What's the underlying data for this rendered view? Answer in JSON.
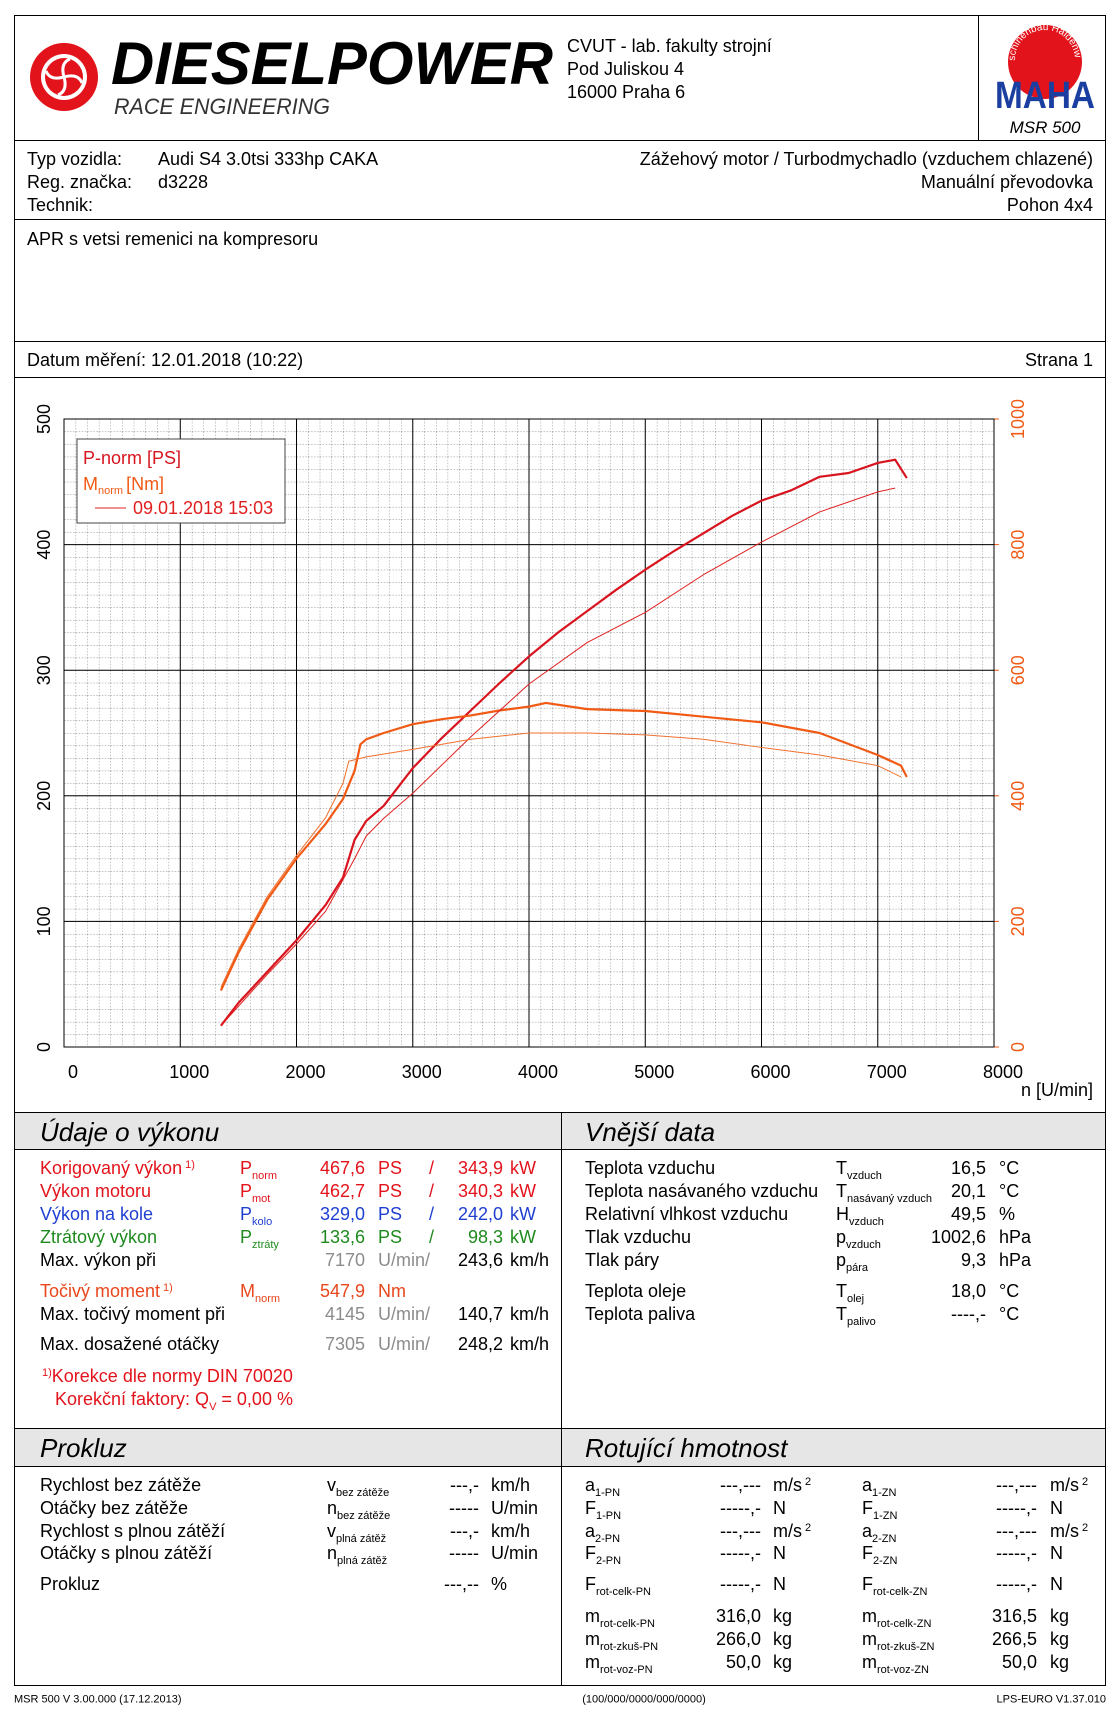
{
  "header": {
    "logo": {
      "title": "DIESELPOWER",
      "subtitle": "RACE ENGINEERING"
    },
    "address": [
      "CVUT - lab. fakulty strojní",
      "Pod Juliskou 4",
      "16000 Praha 6"
    ],
    "maha": {
      "ring": "Maschinenbau Haldenwang",
      "brand": "MAHA",
      "model": "MSR 500"
    }
  },
  "vehicle": {
    "rows": [
      {
        "label": "Typ vozidla:",
        "value": "Audi S4 3.0tsi 333hp CAKA"
      },
      {
        "label": "Reg. značka:",
        "value": "d3228"
      },
      {
        "label": "Technik:"
      }
    ],
    "specs": [
      "Zážehový motor / Turbodmychadlo (vzduchem chlazené)",
      "Manuální převodovka",
      "Pohon 4x4"
    ]
  },
  "note": "APR s vetsi remenici na kompresoru",
  "date": "Datum měření: 12.01.2018 (10:22)",
  "page": "Strana 1",
  "chart_data": {
    "type": "line",
    "x_label": "n [U/min]",
    "xlim": [
      0,
      8000
    ],
    "xticks": [
      0,
      1000,
      2000,
      3000,
      4000,
      5000,
      6000,
      7000,
      8000
    ],
    "ylim": [
      0,
      500
    ],
    "yticks": [
      0,
      100,
      200,
      300,
      400,
      500
    ],
    "y2lim": [
      0,
      1000
    ],
    "y2ticks": [
      0,
      200,
      400,
      600,
      800,
      1000
    ],
    "y2_color": "#f05a14",
    "grid": true,
    "series": [
      {
        "name": "P-norm [PS]",
        "color": "#d8141e",
        "width": 2.2,
        "x": [
          1350,
          1500,
          1750,
          2000,
          2250,
          2400,
          2500,
          2600,
          2750,
          3000,
          3250,
          3500,
          3750,
          4000,
          4250,
          4500,
          4750,
          5000,
          5250,
          5500,
          5750,
          6000,
          6250,
          6500,
          6750,
          7000,
          7150,
          7250
        ],
        "values": [
          17,
          35,
          60,
          85,
          113,
          135,
          165,
          180,
          192,
          222,
          246,
          268,
          290,
          311,
          330,
          347,
          364,
          380,
          395,
          409,
          423,
          435,
          443,
          454,
          457,
          465,
          467.6,
          453
        ]
      },
      {
        "name": "M",
        "name_sub": "norm",
        "name_suffix": "[Nm]",
        "color": "#f05a14",
        "width": 2.2,
        "axis": "y2",
        "x": [
          1350,
          1500,
          1750,
          2000,
          2250,
          2400,
          2500,
          2550,
          2600,
          2750,
          3000,
          3250,
          3500,
          3750,
          4000,
          4145,
          4500,
          5000,
          5500,
          6000,
          6500,
          7000,
          7200,
          7250
        ],
        "values": [
          90,
          150,
          235,
          300,
          355,
          395,
          440,
          482,
          490,
          500,
          514,
          522,
          528,
          536,
          542,
          547.9,
          538,
          535,
          526,
          517,
          500,
          465,
          448,
          430
        ]
      },
      {
        "name": "09.01.2018 15:03",
        "color": "#e02020",
        "width": 1,
        "x": [
          1350,
          1750,
          2000,
          2250,
          2500,
          2600,
          2750,
          3000,
          3500,
          4000,
          4500,
          5000,
          5500,
          6000,
          6500,
          7000,
          7150
        ],
        "values": [
          17,
          58,
          82,
          108,
          150,
          168,
          182,
          202,
          247,
          289,
          322,
          346,
          376,
          402,
          426,
          442,
          445
        ]
      },
      {
        "color": "#f07030",
        "width": 1,
        "axis": "y2",
        "x": [
          1350,
          1500,
          1750,
          2000,
          2250,
          2400,
          2450,
          2600,
          3000,
          3500,
          4000,
          4500,
          5000,
          5500,
          6000,
          6500,
          7000,
          7200
        ],
        "values": [
          95,
          155,
          240,
          305,
          365,
          420,
          455,
          462,
          474,
          490,
          500,
          500,
          497,
          490,
          477,
          465,
          448,
          430
        ]
      }
    ]
  },
  "performance": {
    "title": "Údaje o výkonu",
    "rows": [
      {
        "label": "Korigovaný výkon",
        "note": "1)",
        "symbol": "P",
        "sub": "norm",
        "value": "467,6",
        "unit": "PS",
        "sep": "/",
        "value2": "343,9",
        "unit2": "kW",
        "color": "#e3131b"
      },
      {
        "label": "Výkon motoru",
        "symbol": "P",
        "sub": "mot",
        "value": "462,7",
        "unit": "PS",
        "sep": "/",
        "value2": "340,3",
        "unit2": "kW",
        "color": "#e3131b"
      },
      {
        "label": "Výkon na kole",
        "symbol": "P",
        "sub": "kolo",
        "value": "329,0",
        "unit": "PS",
        "sep": "/",
        "value2": "242,0",
        "unit2": "kW",
        "color": "#1f3fd0"
      },
      {
        "label": "Ztrátový výkon",
        "symbol": "P",
        "sub": "ztráty",
        "value": "133,6",
        "unit": "PS",
        "sep": "/",
        "value2": "98,3",
        "unit2": "kW",
        "color": "#1e8a1e"
      },
      {
        "label": "Max. výkon při",
        "value": "7170",
        "unit": "U/min/",
        "value2": "243,6",
        "unit2": "km/h",
        "value_color": "#8c8c8c"
      },
      {
        "label": "Točivý moment",
        "note": "1)",
        "symbol": "M",
        "sub": "norm",
        "value": "547,9",
        "unit": "Nm",
        "color": "#e8461c"
      },
      {
        "label": "Max. točivý moment při",
        "value": "4145",
        "unit": "U/min/",
        "value2": "140,7",
        "unit2": "km/h",
        "value_color": "#8c8c8c"
      },
      {
        "label": "Max. dosažené otáčky",
        "value": "7305",
        "unit": "U/min/",
        "value2": "248,2",
        "unit2": "km/h",
        "value_color": "#8c8c8c"
      }
    ],
    "footnote": {
      "mark": "1)",
      "text": "Korekce dle normy DIN 70020",
      "factor_label": "Korekční faktory: Q",
      "factor_sub": "V",
      "factor_value": " =   0,00 %",
      "color": "#e3131b"
    }
  },
  "external": {
    "title": "Vnější data",
    "rows": [
      {
        "label": "Teplota vzduchu",
        "symbol": "T",
        "sub": "vzduch",
        "value": "16,5",
        "unit": "°C"
      },
      {
        "label": "Teplota nasávaného vzduchu",
        "symbol": "T",
        "sub": "nasávaný vzduch",
        "value": "20,1",
        "unit": "°C"
      },
      {
        "label": "Relativní vlhkost vzduchu",
        "symbol": "H",
        "sub": "vzduch",
        "value": "49,5",
        "unit": "%"
      },
      {
        "label": "Tlak vzduchu",
        "symbol": "p",
        "sub": "vzduch",
        "value": "1002,6",
        "unit": "hPa"
      },
      {
        "label": "Tlak páry",
        "symbol": "p",
        "sub": "pára",
        "value": "9,3",
        "unit": "hPa"
      },
      {
        "label": "Teplota oleje",
        "symbol": "T",
        "sub": "olej",
        "value": "18,0",
        "unit": "°C"
      },
      {
        "label": "Teplota paliva",
        "symbol": "T",
        "sub": "palivo",
        "value": "----,-",
        "unit": "°C"
      }
    ]
  },
  "slip": {
    "title": "Prokluz",
    "rows": [
      {
        "label": "Rychlost bez zátěže",
        "symbol": "v",
        "sub": "bez zátěže",
        "value": "---,-",
        "unit": "km/h"
      },
      {
        "label": "Otáčky bez zátěže",
        "symbol": "n",
        "sub": "bez zátěže",
        "value": "-----",
        "unit": "U/min"
      },
      {
        "label": "Rychlost s plnou zátěží",
        "symbol": "v",
        "sub": "plná zátěž",
        "value": "---,-",
        "unit": "km/h"
      },
      {
        "label": "Otáčky s plnou zátěží",
        "symbol": "n",
        "sub": "plná zátěž",
        "value": "-----",
        "unit": "U/min"
      },
      {
        "label": "Prokluz",
        "value": "---,--",
        "unit": "%"
      }
    ]
  },
  "rotating": {
    "title": "Rotující hmotnost",
    "left": [
      {
        "symbol": "a",
        "sub": "1-PN",
        "value": "---,---",
        "unit": "m/s",
        "unit_sup": "2"
      },
      {
        "symbol": "F",
        "sub": "1-PN",
        "value": "-----,-",
        "unit": "N"
      },
      {
        "symbol": "a",
        "sub": "2-PN",
        "value": "---,---",
        "unit": "m/s",
        "unit_sup": "2"
      },
      {
        "symbol": "F",
        "sub": "2-PN",
        "value": "-----,-",
        "unit": "N"
      },
      {
        "symbol": "F",
        "sub": "rot-celk-PN",
        "value": "-----,-",
        "unit": "N"
      },
      {
        "symbol": "m",
        "sub": "rot-celk-PN",
        "value": "316,0",
        "unit": "kg"
      },
      {
        "symbol": "m",
        "sub": "rot-zkuš-PN",
        "value": "266,0",
        "unit": "kg"
      },
      {
        "symbol": "m",
        "sub": "rot-voz-PN",
        "value": "50,0",
        "unit": "kg"
      }
    ],
    "right": [
      {
        "symbol": "a",
        "sub": "1-ZN",
        "value": "---,---",
        "unit": "m/s",
        "unit_sup": "2"
      },
      {
        "symbol": "F",
        "sub": "1-ZN",
        "value": "-----,-",
        "unit": "N"
      },
      {
        "symbol": "a",
        "sub": "2-ZN",
        "value": "---,---",
        "unit": "m/s",
        "unit_sup": "2"
      },
      {
        "symbol": "F",
        "sub": "2-ZN",
        "value": "-----,-",
        "unit": "N"
      },
      {
        "symbol": "F",
        "sub": "rot-celk-ZN",
        "value": "-----,-",
        "unit": "N"
      },
      {
        "symbol": "m",
        "sub": "rot-celk-ZN",
        "value": "316,5",
        "unit": "kg"
      },
      {
        "symbol": "m",
        "sub": "rot-zkuš-ZN",
        "value": "266,5",
        "unit": "kg"
      },
      {
        "symbol": "m",
        "sub": "rot-voz-ZN",
        "value": "50,0",
        "unit": "kg"
      }
    ]
  },
  "footer": {
    "left": "MSR 500 V 3.00.000 (17.12.2013)",
    "center": "(100/000/0000/000/0000)",
    "right": "LPS-EURO V1.37.010"
  }
}
